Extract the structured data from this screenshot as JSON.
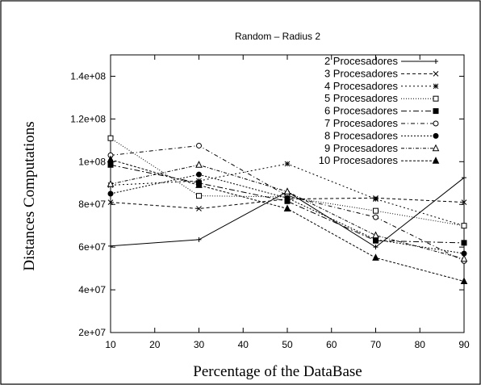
{
  "chart_data": {
    "type": "line",
    "title": "Random – Radius 2",
    "xlabel": "Percentage of the DataBase",
    "ylabel": "Distances Computations",
    "x": [
      10,
      30,
      50,
      70,
      90
    ],
    "xlim": [
      10,
      90
    ],
    "ylim": [
      20000000,
      150000000
    ],
    "xticks": [
      10,
      20,
      30,
      40,
      50,
      60,
      70,
      80,
      90
    ],
    "xtick_labels": [
      "10",
      "20",
      "30",
      "40",
      "50",
      "60",
      "70",
      "80",
      "90"
    ],
    "yticks": [
      20000000,
      40000000,
      60000000,
      80000000,
      100000000,
      120000000,
      140000000
    ],
    "ytick_labels": [
      "2e+07",
      "4e+07",
      "6e+07",
      "8e+07",
      "1e+08",
      "1.2e+08",
      "1.4e+08"
    ],
    "grid": false,
    "legend_position": "top-right",
    "series": [
      {
        "name": "2 Procesadores",
        "marker": "plus",
        "dash": "",
        "values": [
          60500000,
          63500000,
          86000000,
          60000000,
          92500000
        ]
      },
      {
        "name": "3 Procesadores",
        "marker": "x",
        "dash": "4,3",
        "values": [
          81000000,
          78000000,
          82500000,
          83000000,
          81000000
        ]
      },
      {
        "name": "4 Procesadores",
        "marker": "star",
        "dash": "2,3",
        "values": [
          89000000,
          91000000,
          99000000,
          82500000,
          70000000
        ]
      },
      {
        "name": "5 Procesadores",
        "marker": "open-square",
        "dash": "1,2",
        "values": [
          111000000,
          84000000,
          83500000,
          77000000,
          70000000
        ]
      },
      {
        "name": "6 Procesadores",
        "marker": "filled-square",
        "dash": "7,3,2,3",
        "values": [
          98500000,
          90000000,
          81500000,
          63000000,
          62000000
        ]
      },
      {
        "name": "7 Procesadores",
        "marker": "open-circle",
        "dash": "5,3,1,3",
        "values": [
          103000000,
          107500000,
          84000000,
          74000000,
          53500000
        ]
      },
      {
        "name": "8 Procesadores",
        "marker": "filled-circle",
        "dash": "2,2",
        "values": [
          85000000,
          94000000,
          83000000,
          63500000,
          57000000
        ]
      },
      {
        "name": "9 Procesadores",
        "marker": "open-triangle",
        "dash": "4,2,1,2",
        "values": [
          89500000,
          98500000,
          86000000,
          65500000,
          54500000
        ]
      },
      {
        "name": "10 Procesadores",
        "marker": "filled-triangle",
        "dash": "3,2",
        "values": [
          101000000,
          89000000,
          78000000,
          55000000,
          44000000
        ]
      }
    ]
  }
}
